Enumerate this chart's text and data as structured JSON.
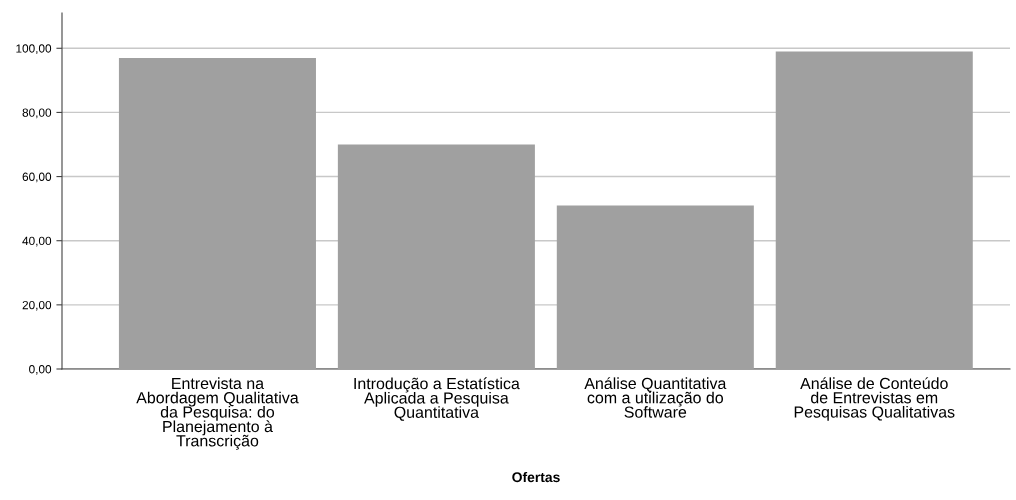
{
  "chart_data": {
    "type": "bar",
    "xlabel": "Ofertas",
    "categories": [
      "Entrevista na\nAbordagem Qualitativa\nda Pesquisa: do\nPlanejamento à\nTranscrição",
      "Introdução a Estatística\nAplicada a Pesquisa\nQuantitativa",
      "Análise Quantitativa\ncom a utilização do\nSoftware",
      "Análise de Conteúdo\nde Entrevistas em\nPesquisas Qualitativas"
    ],
    "values": [
      97,
      70,
      51,
      99
    ],
    "color": "#a0a0a0",
    "ylim": [
      0,
      111
    ],
    "yticks": [
      {
        "value": 0,
        "label": "0,00"
      },
      {
        "value": 20,
        "label": "20,00"
      },
      {
        "value": 40,
        "label": "40,00"
      },
      {
        "value": 60,
        "label": "60,00"
      },
      {
        "value": 80,
        "label": "80,00"
      },
      {
        "value": 100,
        "label": "100,00"
      }
    ],
    "grid": "y"
  }
}
